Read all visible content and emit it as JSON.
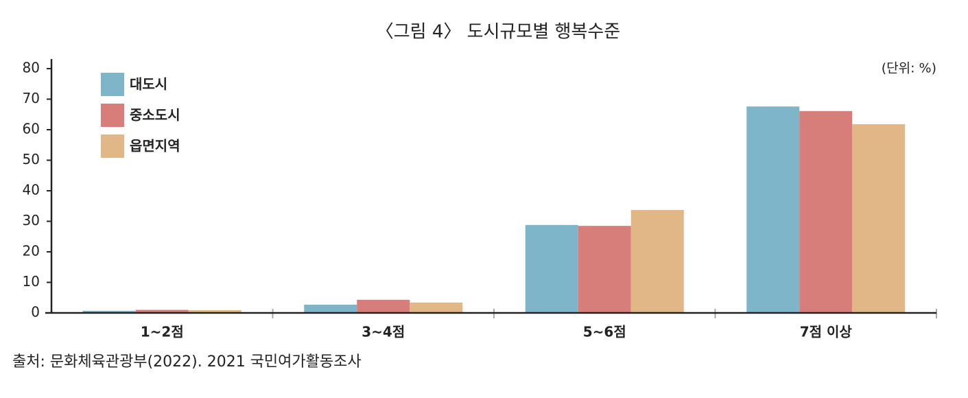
{
  "chart_data": {
    "type": "bar",
    "title": "〈그림 4〉 도시규모별 행복수준",
    "unit": "(단위: %)",
    "source": "출처: 문화체육관광부(2022). 2021 국민여가활동조사",
    "categories": [
      "1~2점",
      "3~4점",
      "5~6점",
      "7점 이상"
    ],
    "series": [
      {
        "name": "대도시",
        "color": "#7fb5c9",
        "values": [
          0.7,
          2.7,
          28.8,
          67.6
        ]
      },
      {
        "name": "중소도시",
        "color": "#d77d7a",
        "values": [
          1.0,
          4.3,
          28.5,
          66.1
        ]
      },
      {
        "name": "읍면지역",
        "color": "#e2b787",
        "values": [
          0.9,
          3.4,
          33.7,
          61.8
        ]
      }
    ],
    "ylim": [
      0,
      80
    ],
    "yticks": [
      0,
      10,
      20,
      30,
      40,
      50,
      60,
      70,
      80
    ],
    "grid": false,
    "legend": "top-left"
  }
}
